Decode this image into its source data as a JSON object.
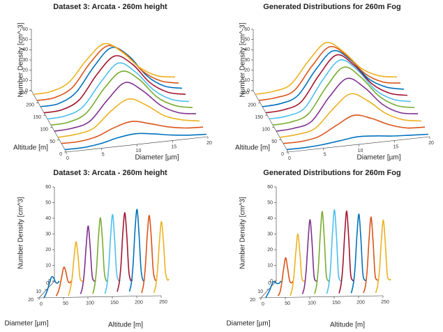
{
  "chart_data": [
    {
      "type": "waterfall3d",
      "title": "Dataset 3: Arcata - 260m height",
      "xlabel": "Diameter [µm]",
      "ylabel": "Altitude [m]",
      "zlabel": "Number Density [cm^-3]",
      "xlim": [
        0,
        20
      ],
      "xticks": [
        0,
        5,
        10,
        15,
        20
      ],
      "ylim": [
        0,
        250
      ],
      "yticks": [
        0,
        50,
        100,
        150,
        200,
        250
      ],
      "zlim": [
        0,
        60
      ],
      "zticks": [
        0,
        10,
        20,
        30,
        40,
        50,
        60
      ],
      "x": [
        0,
        2.5,
        5,
        7.5,
        10,
        12.5,
        15,
        17.5,
        20
      ],
      "series": [
        {
          "z": 10,
          "color": "#0072BD",
          "values": [
            0,
            0,
            2,
            6,
            8,
            6,
            3,
            1,
            0
          ]
        },
        {
          "z": 35,
          "color": "#D95319",
          "values": [
            0,
            0,
            3,
            10,
            14,
            10,
            5,
            2,
            1
          ]
        },
        {
          "z": 60,
          "color": "#EDB120",
          "values": [
            0,
            1,
            5,
            20,
            30,
            22,
            10,
            4,
            1
          ]
        },
        {
          "z": 85,
          "color": "#7E2F8E",
          "values": [
            0,
            1,
            6,
            25,
            40,
            30,
            14,
            5,
            2
          ]
        },
        {
          "z": 110,
          "color": "#77AC30",
          "values": [
            0,
            1,
            8,
            30,
            45,
            35,
            16,
            6,
            2
          ]
        },
        {
          "z": 135,
          "color": "#4DBEEE",
          "values": [
            0,
            1,
            8,
            30,
            47,
            36,
            17,
            6,
            2
          ]
        },
        {
          "z": 160,
          "color": "#A2142F",
          "values": [
            0,
            1,
            9,
            32,
            48,
            38,
            18,
            7,
            3
          ]
        },
        {
          "z": 185,
          "color": "#0072BD",
          "values": [
            0,
            1,
            10,
            33,
            50,
            40,
            19,
            7,
            3
          ]
        },
        {
          "z": 210,
          "color": "#D95319",
          "values": [
            0,
            1,
            9,
            31,
            46,
            36,
            17,
            6,
            2
          ]
        },
        {
          "z": 235,
          "color": "#EDB120",
          "values": [
            0,
            1,
            8,
            28,
            42,
            32,
            15,
            5,
            2
          ]
        }
      ]
    },
    {
      "type": "waterfall3d",
      "title": "Generated Distributions for 260m Fog",
      "xlabel": "Diameter [µm]",
      "ylabel": "Altitude [m]",
      "zlabel": "Number Density [cm^-3]",
      "xlim": [
        0,
        20
      ],
      "xticks": [
        0,
        5,
        10,
        15,
        20
      ],
      "ylim": [
        0,
        250
      ],
      "yticks": [
        0,
        50,
        100,
        150,
        200,
        250
      ],
      "zlim": [
        0,
        60
      ],
      "zticks": [
        0,
        10,
        20,
        30,
        40,
        50,
        60
      ],
      "x": [
        0,
        2.5,
        5,
        7.5,
        10,
        12.5,
        15,
        17.5,
        20
      ],
      "series": [
        {
          "z": 10,
          "color": "#0072BD",
          "values": [
            0,
            0,
            1,
            3,
            5,
            4,
            2,
            1,
            0
          ]
        },
        {
          "z": 35,
          "color": "#D95319",
          "values": [
            0,
            0,
            3,
            12,
            20,
            15,
            7,
            2,
            1
          ]
        },
        {
          "z": 60,
          "color": "#EDB120",
          "values": [
            0,
            1,
            5,
            22,
            35,
            26,
            12,
            4,
            1
          ]
        },
        {
          "z": 85,
          "color": "#7E2F8E",
          "values": [
            0,
            1,
            6,
            28,
            44,
            33,
            15,
            5,
            2
          ]
        },
        {
          "z": 110,
          "color": "#77AC30",
          "values": [
            0,
            1,
            7,
            31,
            49,
            37,
            17,
            6,
            2
          ]
        },
        {
          "z": 135,
          "color": "#4DBEEE",
          "values": [
            0,
            1,
            7,
            32,
            50,
            38,
            17,
            6,
            2
          ]
        },
        {
          "z": 160,
          "color": "#A2142F",
          "values": [
            0,
            1,
            7,
            31,
            49,
            37,
            17,
            6,
            2
          ]
        },
        {
          "z": 185,
          "color": "#0072BD",
          "values": [
            0,
            1,
            7,
            30,
            47,
            36,
            16,
            6,
            2
          ]
        },
        {
          "z": 210,
          "color": "#D95319",
          "values": [
            0,
            1,
            6,
            28,
            45,
            34,
            15,
            5,
            2
          ]
        },
        {
          "z": 235,
          "color": "#EDB120",
          "values": [
            0,
            1,
            6,
            27,
            43,
            32,
            14,
            5,
            2
          ]
        }
      ]
    },
    {
      "type": "waterfall3d",
      "title": "Dataset 3: Arcata - 260m height",
      "xlabel": "Diameter [µm]",
      "ylabel": "Altitude [m]",
      "zlabel": "Number Density [cm^3]",
      "xlim": [
        0,
        20
      ],
      "xticks": [
        0,
        10,
        20
      ],
      "ylim": [
        0,
        250
      ],
      "yticks": [
        0,
        50,
        100,
        150,
        200,
        250
      ],
      "zlim": [
        0,
        60
      ],
      "zticks": [
        0,
        10,
        20,
        30,
        40,
        50,
        60
      ],
      "x": [
        0,
        2.5,
        5,
        7.5,
        10,
        12.5,
        15,
        17.5,
        20
      ],
      "series": [
        {
          "z": 10,
          "color": "#0072BD",
          "values": [
            0,
            0,
            2,
            6,
            8,
            6,
            3,
            1,
            0
          ]
        },
        {
          "z": 35,
          "color": "#D95319",
          "values": [
            0,
            0,
            3,
            10,
            14,
            10,
            5,
            2,
            1
          ]
        },
        {
          "z": 60,
          "color": "#EDB120",
          "values": [
            0,
            1,
            5,
            20,
            30,
            22,
            10,
            4,
            1
          ]
        },
        {
          "z": 85,
          "color": "#7E2F8E",
          "values": [
            0,
            1,
            6,
            25,
            40,
            30,
            14,
            5,
            2
          ]
        },
        {
          "z": 110,
          "color": "#77AC30",
          "values": [
            0,
            1,
            8,
            30,
            45,
            35,
            16,
            6,
            2
          ]
        },
        {
          "z": 135,
          "color": "#4DBEEE",
          "values": [
            0,
            1,
            8,
            30,
            47,
            36,
            17,
            6,
            2
          ]
        },
        {
          "z": 160,
          "color": "#A2142F",
          "values": [
            0,
            1,
            9,
            32,
            48,
            38,
            18,
            7,
            3
          ]
        },
        {
          "z": 185,
          "color": "#0072BD",
          "values": [
            0,
            1,
            10,
            33,
            50,
            40,
            19,
            7,
            3
          ]
        },
        {
          "z": 210,
          "color": "#D95319",
          "values": [
            0,
            1,
            9,
            31,
            46,
            36,
            17,
            6,
            2
          ]
        },
        {
          "z": 235,
          "color": "#EDB120",
          "values": [
            0,
            1,
            8,
            28,
            42,
            32,
            15,
            5,
            2
          ]
        }
      ]
    },
    {
      "type": "waterfall3d",
      "title": "Generated Distributions for 260m Fog",
      "xlabel": "Diameter [µm]",
      "ylabel": "Altitude [m]",
      "zlabel": "Number Density [cm^3]",
      "xlim": [
        0,
        20
      ],
      "xticks": [
        0,
        10,
        20
      ],
      "ylim": [
        0,
        250
      ],
      "yticks": [
        0,
        50,
        100,
        150,
        200,
        250
      ],
      "zlim": [
        0,
        60
      ],
      "zticks": [
        0,
        10,
        20,
        30,
        40,
        50,
        60
      ],
      "x": [
        0,
        2.5,
        5,
        7.5,
        10,
        12.5,
        15,
        17.5,
        20
      ],
      "series": [
        {
          "z": 10,
          "color": "#0072BD",
          "values": [
            0,
            0,
            1,
            3,
            5,
            4,
            2,
            1,
            0
          ]
        },
        {
          "z": 35,
          "color": "#D95319",
          "values": [
            0,
            0,
            3,
            12,
            20,
            15,
            7,
            2,
            1
          ]
        },
        {
          "z": 60,
          "color": "#EDB120",
          "values": [
            0,
            1,
            5,
            22,
            35,
            26,
            12,
            4,
            1
          ]
        },
        {
          "z": 85,
          "color": "#7E2F8E",
          "values": [
            0,
            1,
            6,
            28,
            44,
            33,
            15,
            5,
            2
          ]
        },
        {
          "z": 110,
          "color": "#77AC30",
          "values": [
            0,
            1,
            7,
            31,
            49,
            37,
            17,
            6,
            2
          ]
        },
        {
          "z": 135,
          "color": "#4DBEEE",
          "values": [
            0,
            1,
            7,
            32,
            50,
            38,
            17,
            6,
            2
          ]
        },
        {
          "z": 160,
          "color": "#A2142F",
          "values": [
            0,
            1,
            7,
            31,
            49,
            37,
            17,
            6,
            2
          ]
        },
        {
          "z": 185,
          "color": "#0072BD",
          "values": [
            0,
            1,
            7,
            30,
            47,
            36,
            16,
            6,
            2
          ]
        },
        {
          "z": 210,
          "color": "#D95319",
          "values": [
            0,
            1,
            6,
            28,
            45,
            34,
            15,
            5,
            2
          ]
        },
        {
          "z": 235,
          "color": "#EDB120",
          "values": [
            0,
            1,
            6,
            27,
            43,
            32,
            14,
            5,
            2
          ]
        }
      ]
    }
  ]
}
